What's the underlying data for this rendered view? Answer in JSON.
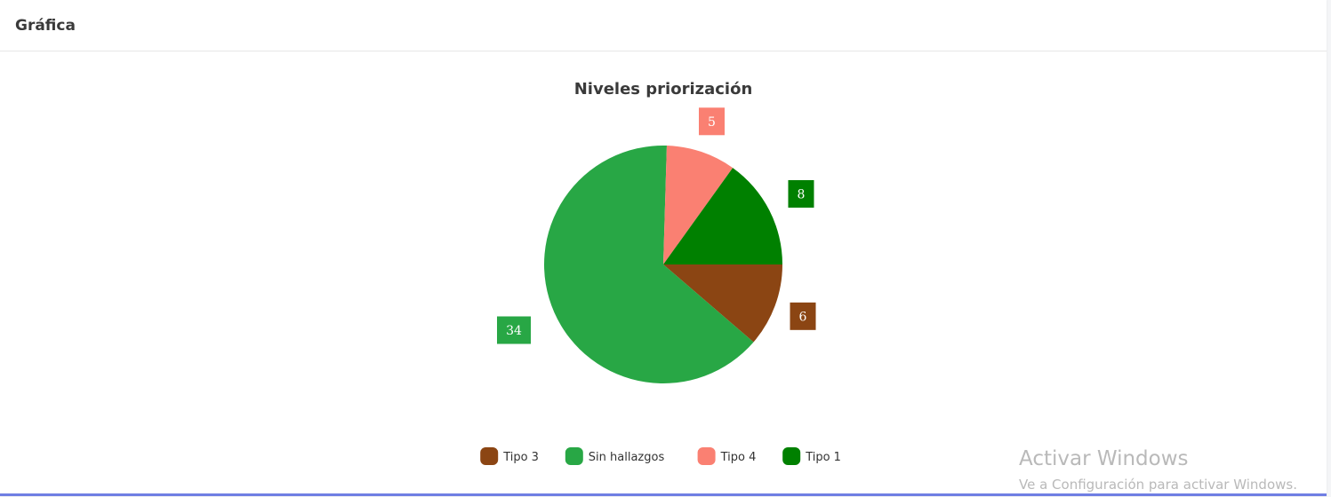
{
  "card": {
    "title": "Gráfica"
  },
  "chart_data": {
    "type": "pie",
    "title": "Niveles priorización",
    "categories": [
      "Tipo 3",
      "Sin hallazgos",
      "Tipo 4",
      "Tipo 1"
    ],
    "values": [
      6,
      34,
      5,
      8
    ],
    "colors": [
      "#8b4513",
      "#28a745",
      "#fa8072",
      "#008000"
    ],
    "legend_position": "bottom",
    "start_angle_deg": 90,
    "direction": "clockwise-from-right"
  },
  "watermark": {
    "title": "Activar Windows",
    "subtitle": "Ve a Configuración para activar Windows."
  }
}
